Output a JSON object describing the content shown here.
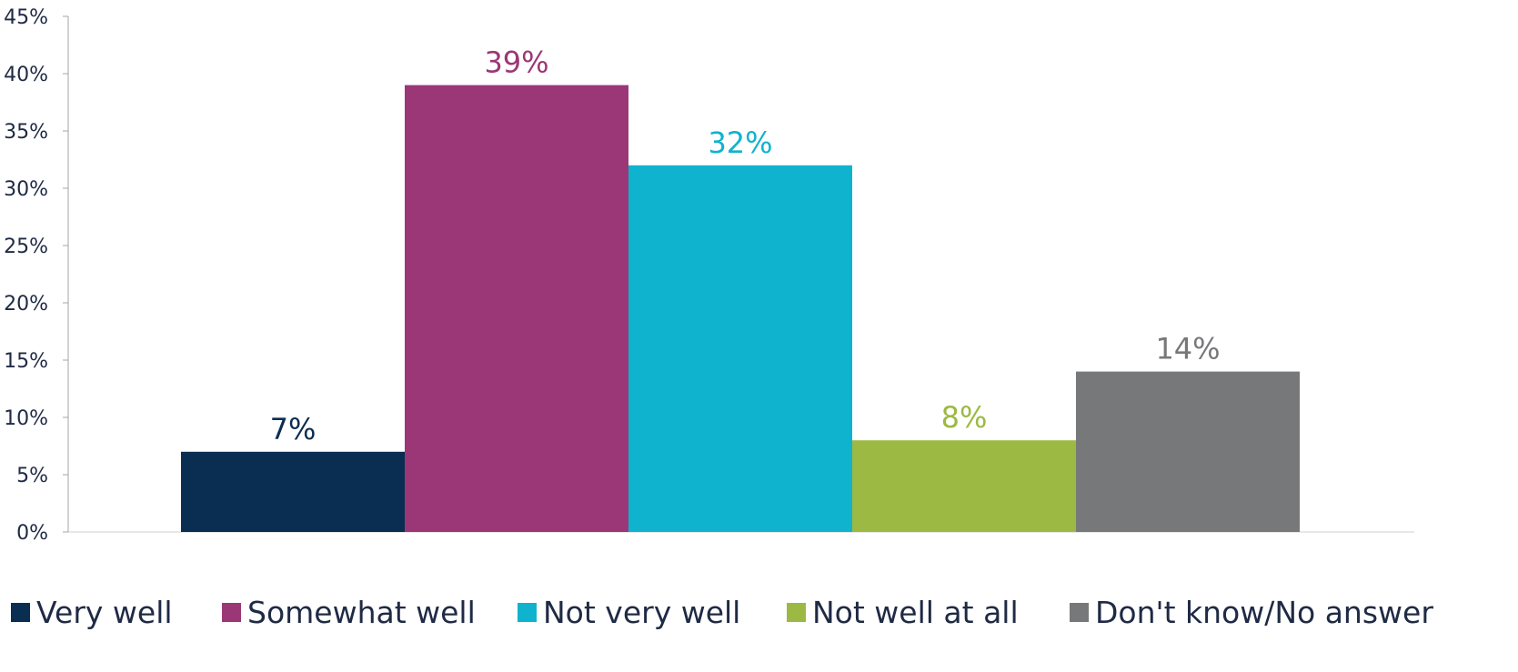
{
  "chart_data": {
    "type": "bar",
    "categories": [
      "Very well",
      "Somewhat well",
      "Not very well",
      "Not well at all",
      "Don't know/No answer"
    ],
    "values": [
      7,
      39,
      32,
      8,
      14
    ],
    "data_labels": [
      "7%",
      "39%",
      "32%",
      "8%",
      "14%"
    ],
    "colors": [
      "#0a2d52",
      "#9b3776",
      "#0fb3ce",
      "#9cb943",
      "#77787a"
    ],
    "ylim": [
      0,
      45
    ],
    "y_ticks": [
      0,
      5,
      10,
      15,
      20,
      25,
      30,
      35,
      40,
      45
    ],
    "y_tick_labels": [
      "0%",
      "5%",
      "10%",
      "15%",
      "20%",
      "25%",
      "30%",
      "35%",
      "40%",
      "45%"
    ],
    "legend_position": "bottom",
    "grid": false,
    "title": "",
    "xlabel": "",
    "ylabel": ""
  },
  "legend": {
    "items": [
      "Very well",
      "Somewhat well",
      "Not very well",
      "Not well at all",
      "Don't know/No answer"
    ]
  }
}
